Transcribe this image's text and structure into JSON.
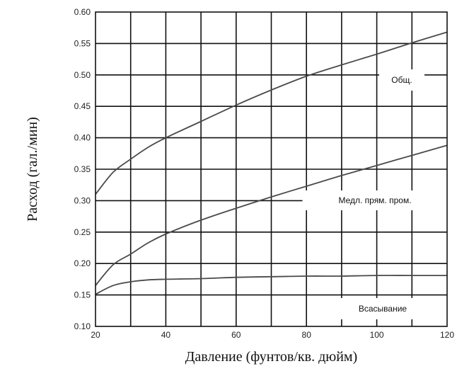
{
  "chart_data": {
    "type": "line",
    "xlabel": "Давление (фунтов/кв. дюйм)",
    "ylabel": "Расход (гал./мин)",
    "xlim": [
      20,
      120
    ],
    "ylim": [
      0.1,
      0.6
    ],
    "x_ticks": [
      "20",
      "40",
      "60",
      "80",
      "100",
      "120"
    ],
    "y_ticks": [
      "0.10",
      "0.15",
      "0.20",
      "0.25",
      "0.30",
      "0.35",
      "0.40",
      "0.45",
      "0.50",
      "0.55",
      "0.60"
    ],
    "grid": true,
    "series": [
      {
        "name": "Общ.",
        "points": [
          [
            20,
            0.31
          ],
          [
            25,
            0.345
          ],
          [
            30,
            0.366
          ],
          [
            35,
            0.385
          ],
          [
            40,
            0.4
          ],
          [
            50,
            0.426
          ],
          [
            60,
            0.452
          ],
          [
            70,
            0.476
          ],
          [
            80,
            0.498
          ],
          [
            90,
            0.516
          ],
          [
            100,
            0.533
          ],
          [
            110,
            0.551
          ],
          [
            120,
            0.568
          ]
        ]
      },
      {
        "name": "Медл. прям. пром.",
        "points": [
          [
            20,
            0.165
          ],
          [
            25,
            0.198
          ],
          [
            30,
            0.215
          ],
          [
            35,
            0.233
          ],
          [
            40,
            0.247
          ],
          [
            50,
            0.269
          ],
          [
            60,
            0.288
          ],
          [
            70,
            0.306
          ],
          [
            80,
            0.323
          ],
          [
            90,
            0.34
          ],
          [
            100,
            0.356
          ],
          [
            110,
            0.372
          ],
          [
            120,
            0.388
          ]
        ]
      },
      {
        "name": "Всасывание",
        "points": [
          [
            20,
            0.151
          ],
          [
            25,
            0.165
          ],
          [
            30,
            0.171
          ],
          [
            35,
            0.174
          ],
          [
            40,
            0.175
          ],
          [
            50,
            0.176
          ],
          [
            60,
            0.178
          ],
          [
            70,
            0.179
          ],
          [
            80,
            0.18
          ],
          [
            90,
            0.18
          ],
          [
            100,
            0.181
          ],
          [
            110,
            0.181
          ],
          [
            120,
            0.181
          ]
        ]
      }
    ]
  }
}
